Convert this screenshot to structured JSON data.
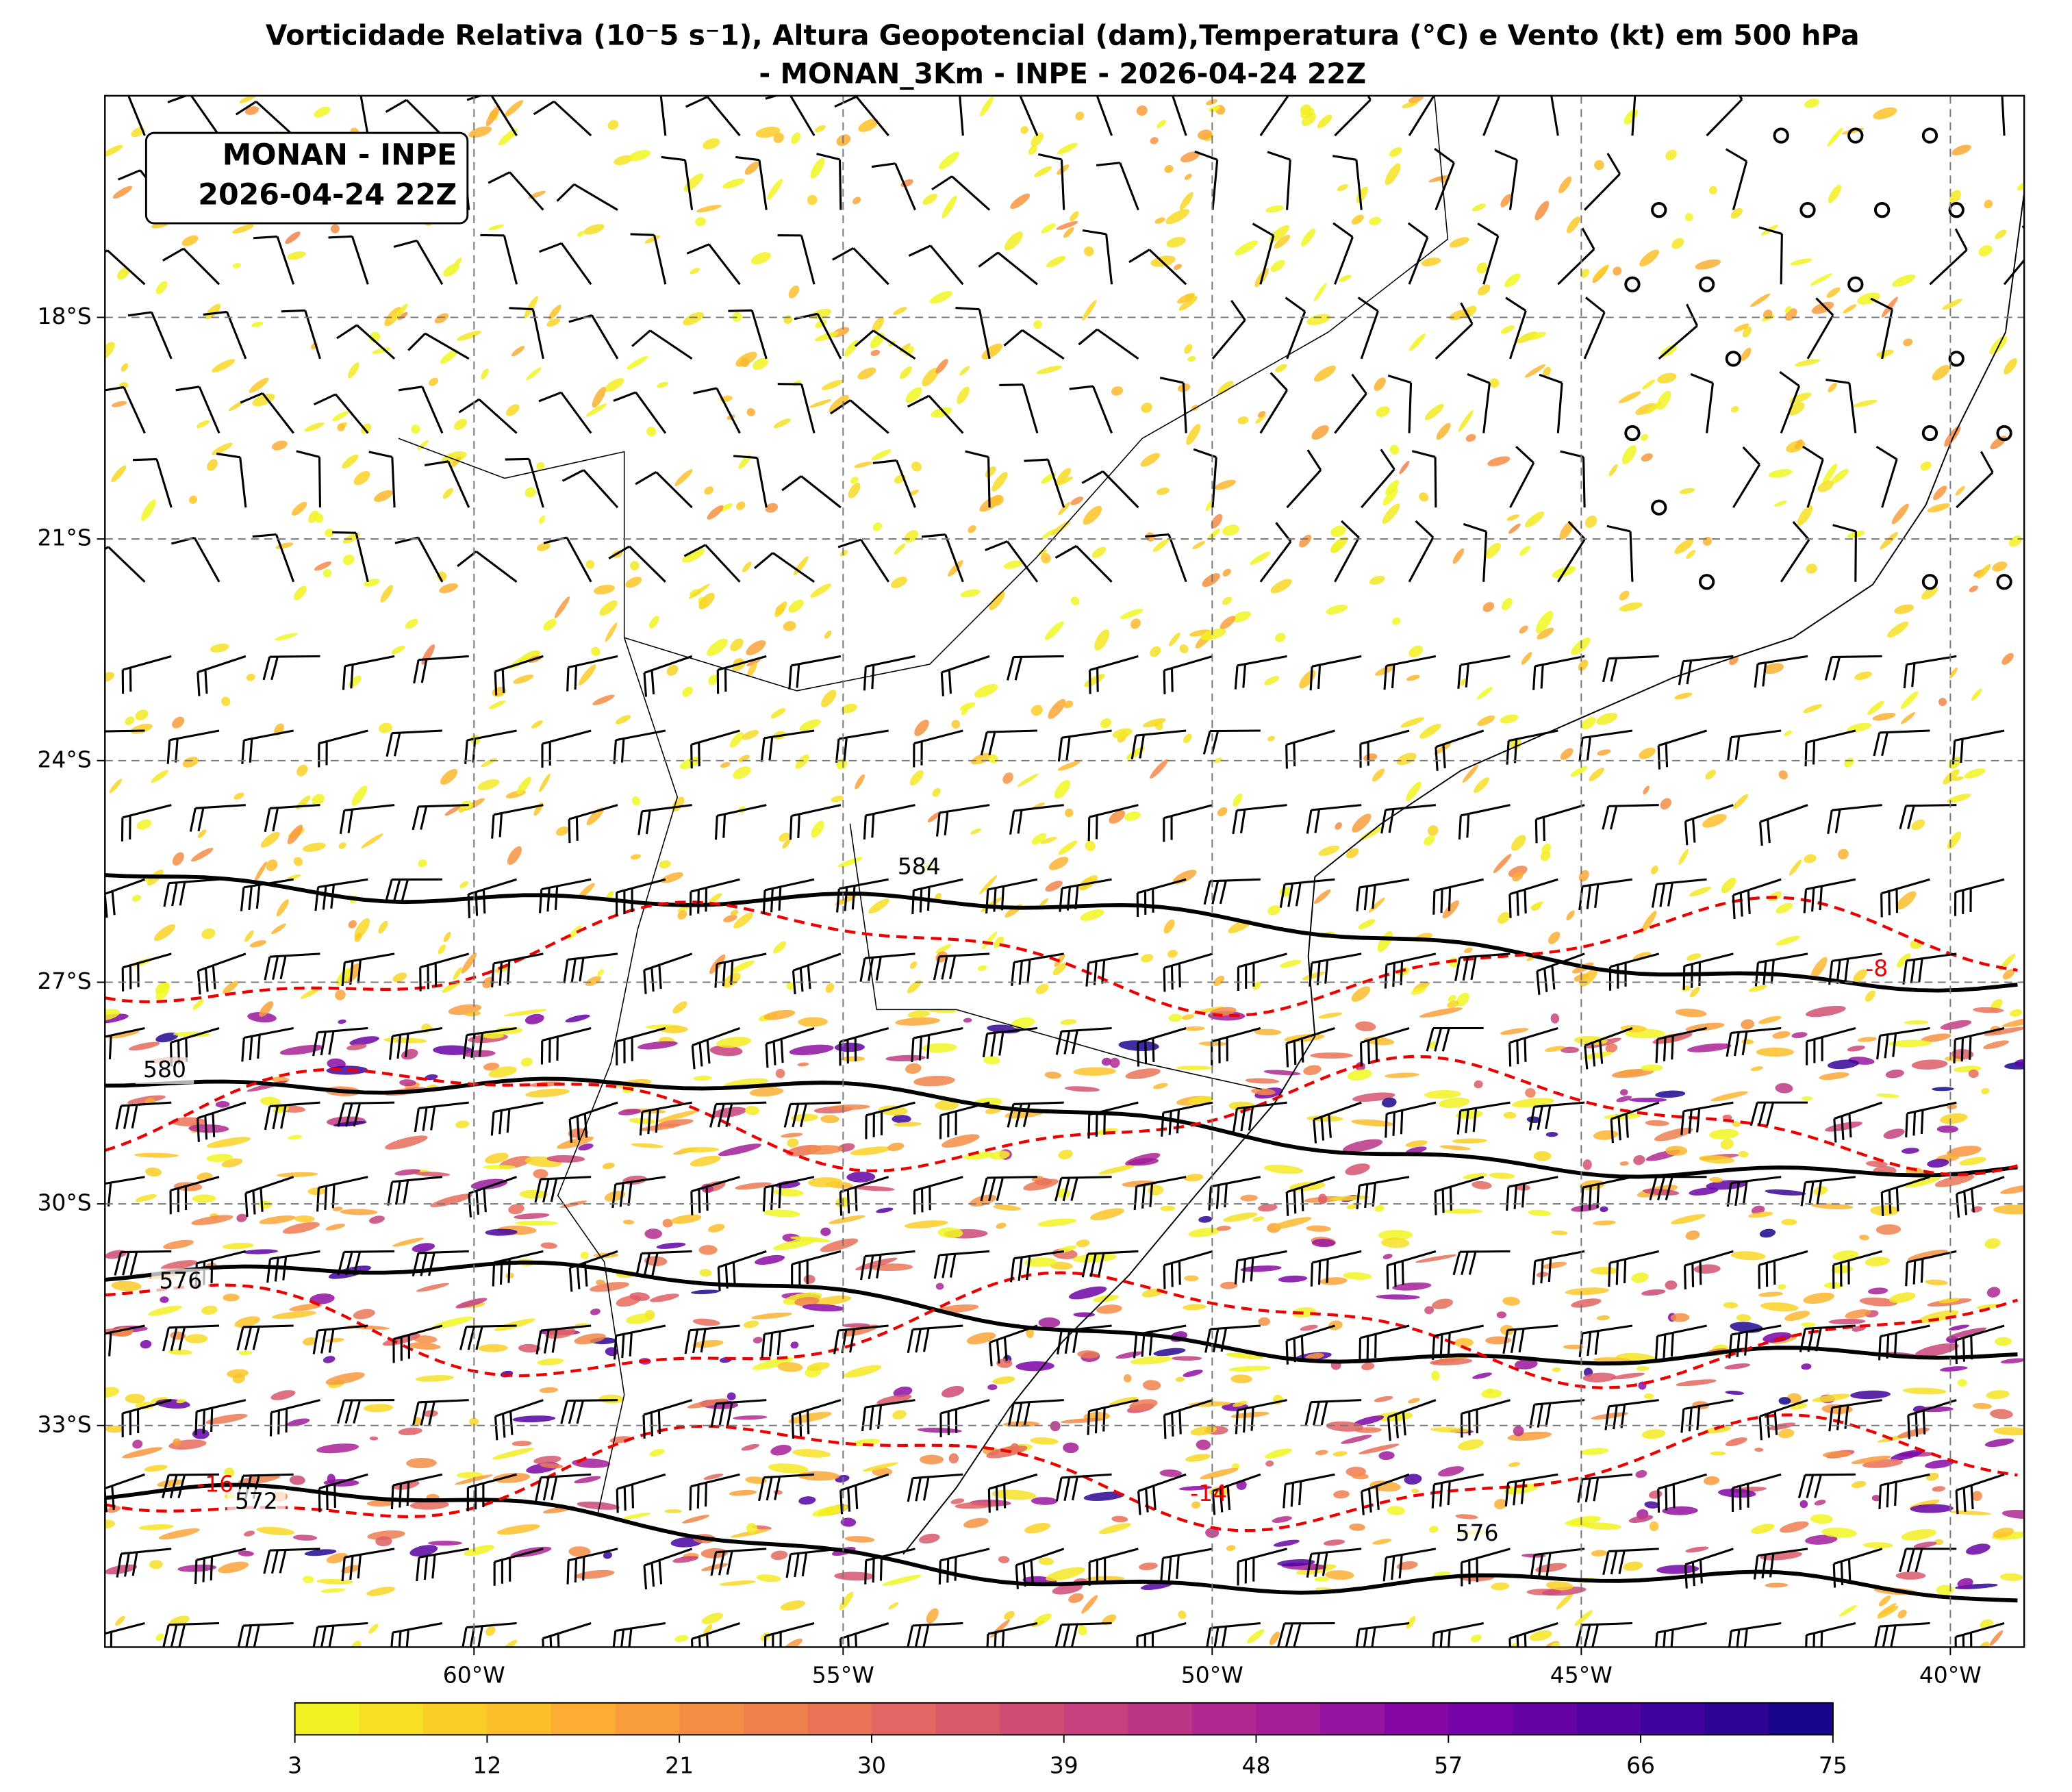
{
  "title": [
    "Vorticidade Relativa (10⁻5 s⁻1), Altura Geopotencial (dam),Temperatura (°C) e Vento (kt) em 500 hPa",
    "- MONAN_3Km - INPE - 2026-04-24 22Z"
  ],
  "box_label": [
    "MONAN - INPE",
    "2026-04-24 22Z"
  ],
  "map": {
    "xlim": [
      -65,
      -39
    ],
    "ylim": [
      -36,
      -15
    ],
    "xticks": [
      {
        "value": -60,
        "label": "60°W"
      },
      {
        "value": -55,
        "label": "55°W"
      },
      {
        "value": -50,
        "label": "50°W"
      },
      {
        "value": -45,
        "label": "45°W"
      },
      {
        "value": -40,
        "label": "40°W"
      }
    ],
    "yticks": [
      {
        "value": -18,
        "label": "18°S"
      },
      {
        "value": -21,
        "label": "21°S"
      },
      {
        "value": -24,
        "label": "24°S"
      },
      {
        "value": -27,
        "label": "27°S"
      },
      {
        "value": -30,
        "label": "30°S"
      },
      {
        "value": -33,
        "label": "33°S"
      }
    ],
    "grid": true,
    "contour_labels": {
      "height": [
        "584",
        "580",
        "576",
        "572",
        "576"
      ],
      "temperature": [
        "-8",
        "-16",
        "-14"
      ]
    }
  },
  "colorbar": {
    "lim": [
      3,
      75
    ],
    "ticks": [
      3,
      12,
      21,
      30,
      39,
      48,
      57,
      66,
      75
    ],
    "colors": [
      "#f0f921",
      "#fdc527",
      "#f89540",
      "#e66c5c",
      "#cc4778",
      "#aa2395",
      "#7e03a8",
      "#4c02a1",
      "#0d0887"
    ]
  }
}
